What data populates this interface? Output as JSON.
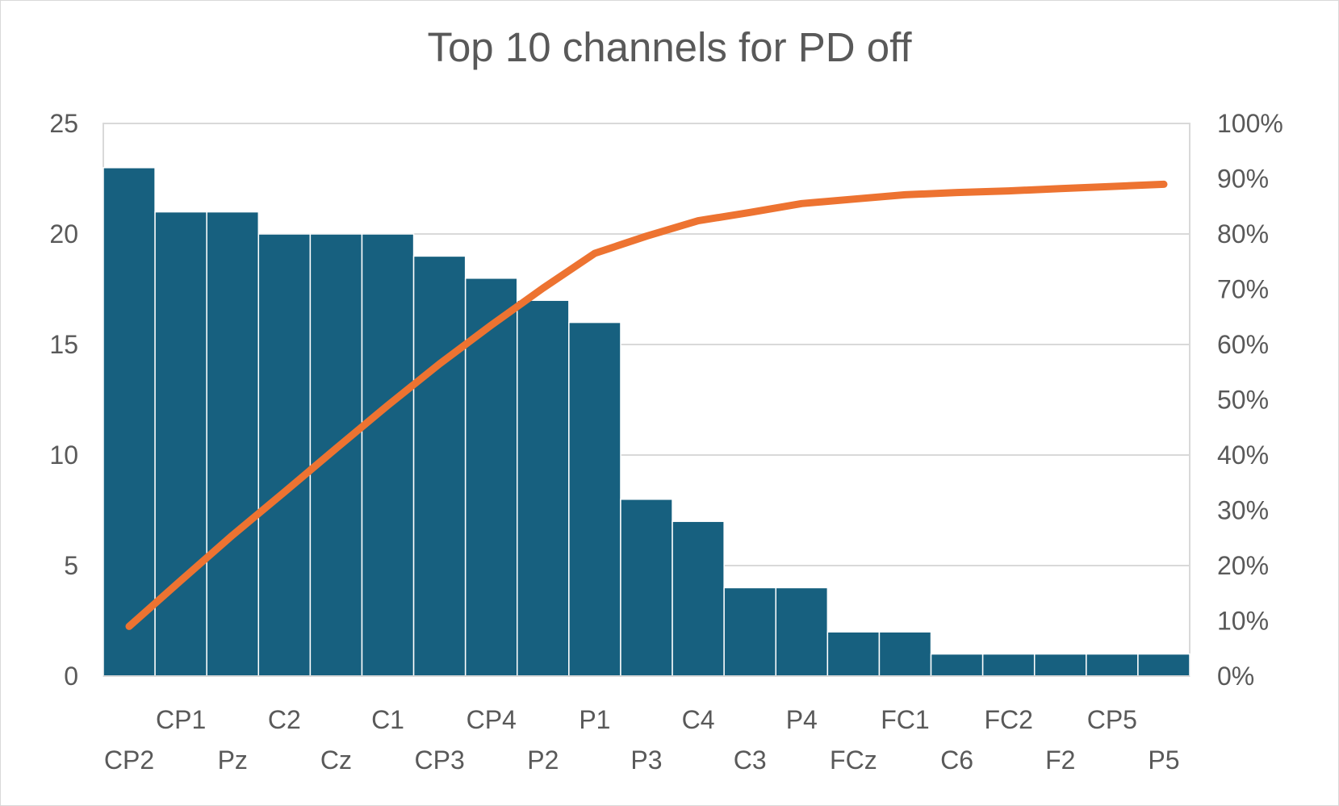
{
  "chart_data": {
    "type": "bar",
    "title": "Top 10 channels for  PD off",
    "xlabel": "",
    "ylabel": "",
    "categories": [
      "CP2",
      "CP1",
      "Pz",
      "C2",
      "Cz",
      "C1",
      "CP3",
      "CP4",
      "P2",
      "P1",
      "P3",
      "C4",
      "C3",
      "P4",
      "FCz",
      "FC1",
      "C6",
      "FC2",
      "F2",
      "CP5",
      "P5"
    ],
    "series": [
      {
        "type": "bar",
        "axis": "primary",
        "values": [
          23,
          21,
          21,
          20,
          20,
          20,
          19,
          18,
          17,
          16,
          8,
          7,
          4,
          4,
          2,
          2,
          1,
          1,
          1,
          1,
          1
        ]
      },
      {
        "type": "line",
        "axis": "secondary",
        "values": [
          0.09,
          0.173,
          0.255,
          0.333,
          0.412,
          0.49,
          0.565,
          0.635,
          0.702,
          0.765,
          0.796,
          0.824,
          0.839,
          0.855,
          0.863,
          0.871,
          0.875,
          0.878,
          0.882,
          0.886,
          0.89
        ]
      }
    ],
    "ylim": [
      0,
      25
    ],
    "yticks": [
      "0",
      "5",
      "10",
      "15",
      "20",
      "25"
    ],
    "y2lim": [
      0,
      1
    ],
    "y2ticks": [
      "0%",
      "10%",
      "20%",
      "30%",
      "40%",
      "50%",
      "60%",
      "70%",
      "80%",
      "90%",
      "100%"
    ],
    "grid": true,
    "legend": "none",
    "colors": {
      "bar": "#17607f",
      "line": "#ed7331",
      "grid": "#d9d9d9",
      "text": "#595959"
    }
  }
}
